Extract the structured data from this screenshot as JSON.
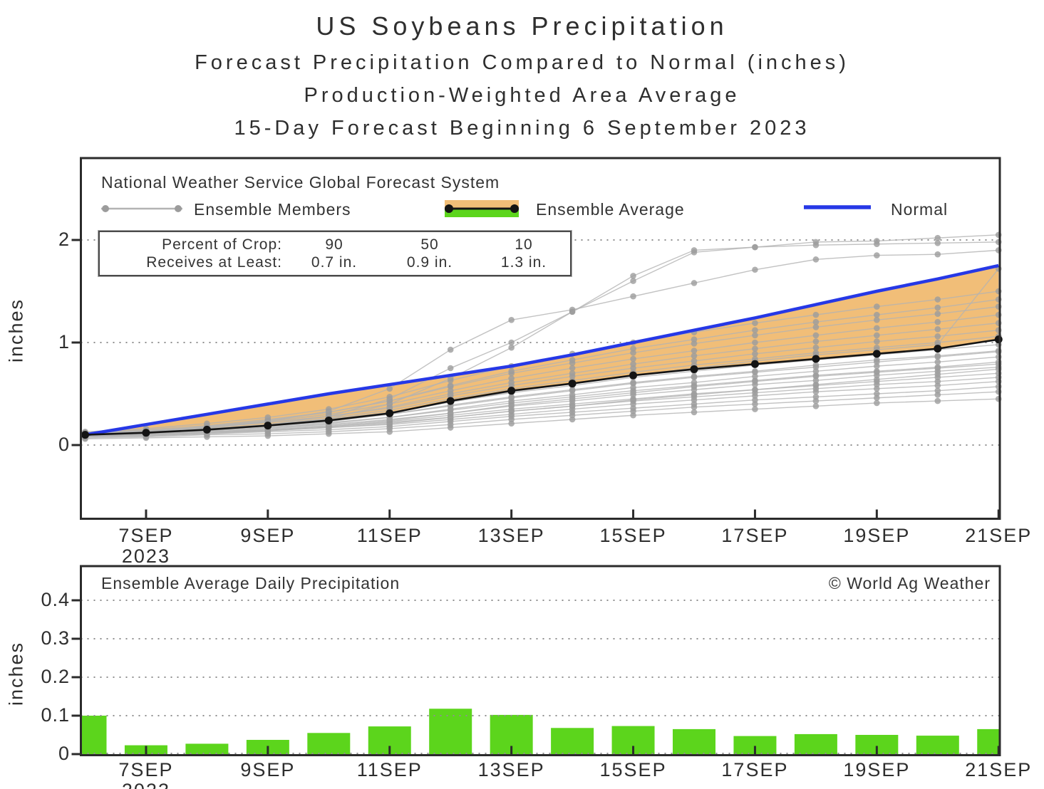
{
  "header": {
    "title": "US Soybeans Precipitation",
    "subtitle1": "Forecast Precipitation Compared to Normal (inches)",
    "subtitle2": "Production-Weighted Area Average",
    "subtitle3": "15-Day Forecast Beginning 6 September 2023"
  },
  "top_chart": {
    "source_label": "National Weather Service Global Forecast System",
    "legend": {
      "members_label": "Ensemble Members",
      "average_label": "Ensemble Average",
      "normal_label": "Normal"
    },
    "info_box": {
      "row1_label": "Percent of Crop:",
      "row1_values": [
        "90",
        "50",
        "10"
      ],
      "row2_label": "Receives at Least:",
      "row2_values": [
        "0.7 in.",
        "0.9 in.",
        "1.3 in."
      ]
    },
    "ylabel": "inches",
    "y_tick_labels": [
      "0",
      "1",
      "2"
    ]
  },
  "bottom_chart": {
    "title": "Ensemble Average Daily Precipitation",
    "copyright": "© World Ag Weather",
    "ylabel": "inches",
    "y_tick_labels": [
      "0",
      "0.1",
      "0.2",
      "0.3",
      "0.4"
    ]
  },
  "x_axis": {
    "tick_labels": [
      "7SEP",
      "9SEP",
      "11SEP",
      "13SEP",
      "15SEP",
      "17SEP",
      "19SEP",
      "21SEP"
    ],
    "tick_day_indices": [
      1,
      3,
      5,
      7,
      9,
      11,
      13,
      15
    ],
    "year_label": "2023"
  },
  "colors": {
    "normal_blue": "#2638E6",
    "band_orange": "#F1BE78",
    "bar_green": "#5CD51C",
    "legend_green": "#5CD51C",
    "member_gray": "#B3B3B3",
    "member_dot_gray": "#9C9C9C",
    "average_black": "#141414",
    "grid_gray": "#8F8F8F",
    "border_dark": "#2B2B2B",
    "text": "#333333"
  },
  "chart_data": [
    {
      "type": "line",
      "x": [
        "6SEP",
        "7SEP",
        "8SEP",
        "9SEP",
        "10SEP",
        "11SEP",
        "12SEP",
        "13SEP",
        "14SEP",
        "15SEP",
        "16SEP",
        "17SEP",
        "18SEP",
        "19SEP",
        "20SEP",
        "21SEP"
      ],
      "ylabel": "inches",
      "ylim": [
        -0.72,
        2.8
      ],
      "yticks": [
        0,
        1,
        2
      ],
      "grid": "dotted-horizontal",
      "legend_position": "top-inside",
      "series": [
        {
          "name": "Ensemble Average",
          "color_key": "average_black",
          "values": [
            0.1,
            0.12,
            0.15,
            0.19,
            0.24,
            0.31,
            0.43,
            0.53,
            0.6,
            0.68,
            0.74,
            0.79,
            0.84,
            0.89,
            0.94,
            1.03
          ]
        },
        {
          "name": "Normal",
          "color_key": "normal_blue",
          "values": [
            0.1,
            0.2,
            0.3,
            0.4,
            0.5,
            0.59,
            0.68,
            0.77,
            0.88,
            1.0,
            1.12,
            1.24,
            1.37,
            1.5,
            1.62,
            1.75
          ]
        }
      ],
      "band": {
        "between": [
          "Ensemble Average",
          "Normal"
        ],
        "color_key": "band_orange"
      },
      "percentile_table": {
        "percent_of_crop": [
          90,
          50,
          10
        ],
        "receives_at_least_in": [
          0.7,
          0.9,
          1.3
        ]
      },
      "ensemble_members": [
        [
          0.06,
          0.07,
          0.08,
          0.09,
          0.11,
          0.13,
          0.17,
          0.21,
          0.25,
          0.29,
          0.32,
          0.35,
          0.38,
          0.41,
          0.43,
          0.45
        ],
        [
          0.07,
          0.08,
          0.1,
          0.11,
          0.13,
          0.16,
          0.2,
          0.25,
          0.29,
          0.33,
          0.37,
          0.4,
          0.43,
          0.46,
          0.49,
          0.52
        ],
        [
          0.08,
          0.09,
          0.11,
          0.13,
          0.15,
          0.18,
          0.23,
          0.28,
          0.32,
          0.36,
          0.4,
          0.44,
          0.47,
          0.5,
          0.53,
          0.57
        ],
        [
          0.09,
          0.1,
          0.12,
          0.14,
          0.17,
          0.2,
          0.25,
          0.3,
          0.35,
          0.4,
          0.44,
          0.48,
          0.52,
          0.55,
          0.58,
          0.62
        ],
        [
          0.1,
          0.11,
          0.13,
          0.15,
          0.18,
          0.22,
          0.27,
          0.33,
          0.38,
          0.43,
          0.47,
          0.51,
          0.55,
          0.59,
          0.62,
          0.66
        ],
        [
          0.08,
          0.1,
          0.12,
          0.15,
          0.18,
          0.23,
          0.29,
          0.35,
          0.4,
          0.45,
          0.5,
          0.54,
          0.58,
          0.62,
          0.66,
          0.7
        ],
        [
          0.1,
          0.12,
          0.14,
          0.17,
          0.2,
          0.25,
          0.31,
          0.38,
          0.43,
          0.49,
          0.54,
          0.59,
          0.63,
          0.68,
          0.72,
          0.76
        ],
        [
          0.11,
          0.13,
          0.15,
          0.18,
          0.22,
          0.27,
          0.34,
          0.41,
          0.47,
          0.53,
          0.58,
          0.63,
          0.68,
          0.72,
          0.76,
          0.81
        ],
        [
          0.09,
          0.11,
          0.14,
          0.17,
          0.21,
          0.27,
          0.35,
          0.43,
          0.49,
          0.56,
          0.61,
          0.67,
          0.72,
          0.77,
          0.81,
          0.86
        ],
        [
          0.1,
          0.12,
          0.15,
          0.19,
          0.23,
          0.3,
          0.39,
          0.47,
          0.54,
          0.61,
          0.67,
          0.72,
          0.78,
          0.83,
          0.87,
          0.92
        ],
        [
          0.11,
          0.13,
          0.16,
          0.2,
          0.25,
          0.32,
          0.42,
          0.51,
          0.58,
          0.66,
          0.72,
          0.78,
          0.83,
          0.88,
          0.93,
          0.98
        ],
        [
          0.1,
          0.12,
          0.16,
          0.2,
          0.26,
          0.34,
          0.45,
          0.55,
          0.63,
          0.71,
          0.78,
          0.84,
          0.9,
          0.95,
          1.0,
          1.06
        ],
        [
          0.12,
          0.14,
          0.17,
          0.22,
          0.28,
          0.36,
          0.48,
          0.58,
          0.67,
          0.75,
          0.82,
          0.89,
          0.95,
          1.01,
          1.06,
          1.12
        ],
        [
          0.1,
          0.13,
          0.17,
          0.22,
          0.28,
          0.37,
          0.5,
          0.61,
          0.7,
          0.79,
          0.87,
          0.94,
          1.01,
          1.07,
          1.13,
          1.19
        ],
        [
          0.11,
          0.14,
          0.18,
          0.23,
          0.3,
          0.4,
          0.53,
          0.65,
          0.75,
          0.84,
          0.92,
          1.0,
          1.07,
          1.14,
          1.2,
          1.27
        ],
        [
          0.12,
          0.15,
          0.19,
          0.25,
          0.32,
          0.43,
          0.57,
          0.7,
          0.8,
          0.9,
          0.99,
          1.07,
          1.15,
          1.22,
          1.28,
          1.35
        ],
        [
          0.1,
          0.13,
          0.18,
          0.24,
          0.32,
          0.43,
          0.58,
          0.72,
          0.83,
          0.94,
          1.03,
          1.12,
          1.2,
          1.27,
          1.34,
          1.42
        ],
        [
          0.13,
          0.16,
          0.21,
          0.27,
          0.35,
          0.47,
          0.63,
          0.77,
          0.89,
          1.0,
          1.1,
          1.19,
          1.27,
          1.35,
          1.42,
          1.5
        ],
        [
          0.08,
          0.09,
          0.11,
          0.14,
          0.17,
          0.21,
          0.27,
          0.33,
          0.38,
          0.44,
          0.49,
          0.54,
          0.59,
          0.64,
          0.69,
          0.74
        ],
        [
          0.09,
          0.1,
          0.13,
          0.16,
          0.19,
          0.24,
          0.31,
          0.39,
          0.45,
          0.51,
          0.57,
          0.62,
          0.67,
          0.71,
          0.75,
          0.79
        ],
        [
          0.12,
          0.14,
          0.16,
          0.19,
          0.24,
          0.3,
          0.38,
          0.46,
          0.53,
          0.6,
          0.66,
          0.71,
          0.76,
          0.81,
          0.86,
          0.91
        ],
        [
          0.1,
          0.12,
          0.15,
          0.2,
          0.28,
          0.45,
          0.75,
          1.0,
          1.3,
          1.6,
          1.88,
          1.93,
          1.98,
          1.99,
          2.02,
          2.05
        ],
        [
          0.11,
          0.13,
          0.17,
          0.23,
          0.33,
          0.55,
          0.93,
          1.22,
          1.32,
          1.45,
          1.58,
          1.71,
          1.81,
          1.85,
          1.86,
          1.9
        ],
        [
          0.09,
          0.11,
          0.14,
          0.19,
          0.26,
          0.4,
          0.65,
          0.95,
          1.3,
          1.65,
          1.9,
          1.93,
          1.95,
          1.96,
          1.97,
          1.98
        ],
        [
          0.1,
          0.12,
          0.15,
          0.19,
          0.24,
          0.31,
          0.42,
          0.52,
          0.6,
          0.68,
          0.75,
          0.82,
          0.88,
          0.93,
          0.98,
          1.72
        ]
      ]
    },
    {
      "type": "bar",
      "title": "Ensemble Average Daily Precipitation",
      "x": [
        "6SEP",
        "7SEP",
        "8SEP",
        "9SEP",
        "10SEP",
        "11SEP",
        "12SEP",
        "13SEP",
        "14SEP",
        "15SEP",
        "16SEP",
        "17SEP",
        "18SEP",
        "19SEP",
        "20SEP",
        "21SEP"
      ],
      "values": [
        0.1,
        0.023,
        0.027,
        0.037,
        0.055,
        0.072,
        0.118,
        0.102,
        0.068,
        0.073,
        0.065,
        0.047,
        0.052,
        0.05,
        0.048,
        0.065
      ],
      "ylabel": "inches",
      "ylim": [
        0,
        0.49
      ],
      "yticks": [
        0,
        0.1,
        0.2,
        0.3,
        0.4
      ],
      "grid": "dotted-horizontal"
    }
  ]
}
